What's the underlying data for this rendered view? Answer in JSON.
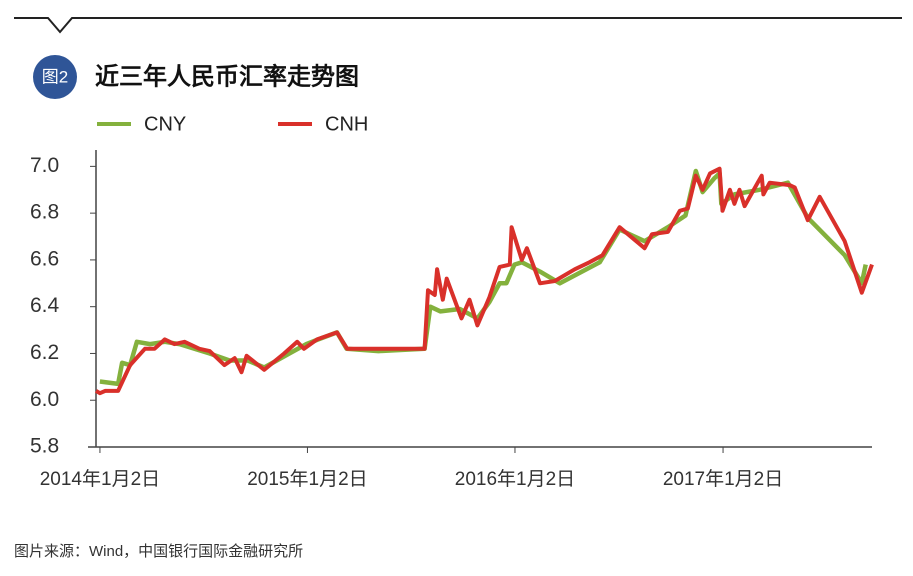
{
  "chart_data": {
    "type": "line",
    "figure_label": "图2",
    "title": "近三年人民币汇率走势图",
    "source": "图片来源：Wind，中国银行国际金融研究所",
    "xlim": [
      "2013-12-12",
      "2017-09-21"
    ],
    "xticks": [
      {
        "value": "2014-01-02",
        "label": "2014年1月2日"
      },
      {
        "value": "2015-01-02",
        "label": "2015年1月2日"
      },
      {
        "value": "2016-01-02",
        "label": "2016年1月2日"
      },
      {
        "value": "2017-01-02",
        "label": "2017年1月2日"
      }
    ],
    "ylim": [
      5.8,
      7.07
    ],
    "yticks": [
      5.8,
      {
        "value": 6,
        "label": "6.0"
      },
      6.2,
      6.4,
      6.6,
      6.8,
      {
        "value": 7,
        "label": "7.0"
      }
    ],
    "grid": false,
    "legend": "top",
    "series": [
      {
        "name": "CNY",
        "color": "#84b13d",
        "x": [
          "2014-01-02",
          "2014-02-03",
          "2014-02-10",
          "2014-02-24",
          "2014-03-08",
          "2014-03-31",
          "2014-04-26",
          "2014-05-22",
          "2014-07-14",
          "2014-08-18",
          "2014-09-19",
          "2014-10-18",
          "2014-12-01",
          "2014-12-31",
          "2015-01-21",
          "2015-02-23",
          "2015-03-12",
          "2015-05-07",
          "2015-07-27",
          "2015-08-06",
          "2015-08-24",
          "2015-09-27",
          "2015-10-28",
          "2015-11-18",
          "2015-12-06",
          "2015-12-18",
          "2016-01-01",
          "2016-01-14",
          "2016-02-15",
          "2016-03-21",
          "2016-05-30",
          "2016-07-04",
          "2016-08-17",
          "2016-09-27",
          "2016-10-28",
          "2016-11-15",
          "2016-11-27",
          "2016-12-18",
          "2016-12-27",
          "2016-12-30",
          "2017-01-22",
          "2017-03-07",
          "2017-04-26",
          "2017-05-31",
          "2017-08-04",
          "2017-09-03",
          "2017-09-10"
        ],
        "values": [
          6.08,
          6.07,
          6.16,
          6.15,
          6.25,
          6.24,
          6.25,
          6.24,
          6.2,
          6.17,
          6.17,
          6.14,
          6.2,
          6.24,
          6.26,
          6.29,
          6.22,
          6.21,
          6.22,
          6.4,
          6.38,
          6.39,
          6.35,
          6.42,
          6.5,
          6.5,
          6.58,
          6.59,
          6.55,
          6.5,
          6.59,
          6.73,
          6.68,
          6.74,
          6.79,
          6.98,
          6.89,
          6.95,
          6.97,
          6.84,
          6.88,
          6.9,
          6.93,
          6.78,
          6.62,
          6.5,
          6.58
        ]
      },
      {
        "name": "CNH",
        "color": "#d9302a",
        "x": [
          "2013-12-26",
          "2014-01-02",
          "2014-01-11",
          "2014-02-03",
          "2014-02-24",
          "2014-03-22",
          "2014-04-08",
          "2014-04-26",
          "2014-05-13",
          "2014-05-31",
          "2014-06-26",
          "2014-07-14",
          "2014-08-09",
          "2014-08-27",
          "2014-09-08",
          "2014-09-17",
          "2014-10-18",
          "2014-11-22",
          "2014-12-15",
          "2014-12-27",
          "2015-01-19",
          "2015-02-23",
          "2015-03-13",
          "2015-04-29",
          "2015-07-27",
          "2015-08-02",
          "2015-08-14",
          "2015-08-18",
          "2015-08-28",
          "2015-09-04",
          "2015-09-30",
          "2015-10-14",
          "2015-10-28",
          "2015-11-18",
          "2015-12-06",
          "2015-12-24",
          "2015-12-27",
          "2016-01-14",
          "2016-01-23",
          "2016-02-15",
          "2016-03-12",
          "2016-04-16",
          "2016-05-12",
          "2016-06-04",
          "2016-07-04",
          "2016-08-17",
          "2016-08-30",
          "2016-09-27",
          "2016-10-18",
          "2016-11-01",
          "2016-11-15",
          "2016-11-27",
          "2016-12-10",
          "2016-12-27",
          "2017-01-01",
          "2017-01-14",
          "2017-01-22",
          "2017-01-31",
          "2017-02-09",
          "2017-03-04",
          "2017-03-11",
          "2017-03-14",
          "2017-03-25",
          "2017-04-29",
          "2017-05-08",
          "2017-05-31",
          "2017-06-21",
          "2017-08-04",
          "2017-09-03",
          "2017-09-21"
        ],
        "values": [
          6.04,
          6.03,
          6.04,
          6.04,
          6.15,
          6.22,
          6.22,
          6.26,
          6.24,
          6.25,
          6.22,
          6.21,
          6.15,
          6.18,
          6.12,
          6.19,
          6.13,
          6.2,
          6.25,
          6.22,
          6.26,
          6.29,
          6.22,
          6.22,
          6.22,
          6.47,
          6.45,
          6.56,
          6.43,
          6.52,
          6.35,
          6.43,
          6.32,
          6.44,
          6.57,
          6.58,
          6.74,
          6.6,
          6.65,
          6.5,
          6.51,
          6.56,
          6.59,
          6.62,
          6.74,
          6.65,
          6.71,
          6.72,
          6.81,
          6.82,
          6.96,
          6.9,
          6.97,
          6.99,
          6.81,
          6.9,
          6.84,
          6.9,
          6.83,
          6.93,
          6.96,
          6.88,
          6.93,
          6.92,
          6.91,
          6.77,
          6.87,
          6.68,
          6.46,
          6.58
        ]
      }
    ]
  }
}
